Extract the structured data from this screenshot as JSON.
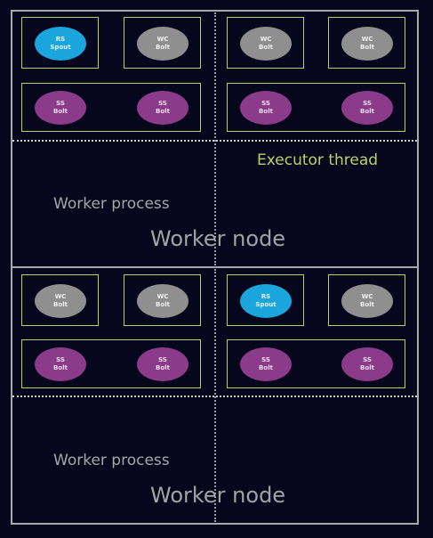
{
  "nodes": [
    {
      "worker_process_label": "Worker process",
      "worker_node_label": "Worker node",
      "executor_thread_label": "Executor thread",
      "tasks": [
        {
          "line1": "RS",
          "line2": "Spout",
          "kind": "spout"
        },
        {
          "line1": "WC",
          "line2": "Bolt",
          "kind": "wc"
        },
        {
          "line1": "WC",
          "line2": "Bolt",
          "kind": "wc"
        },
        {
          "line1": "WC",
          "line2": "Bolt",
          "kind": "wc"
        },
        {
          "line1": "SS",
          "line2": "Bolt",
          "kind": "ss"
        },
        {
          "line1": "SS",
          "line2": "Bolt",
          "kind": "ss"
        },
        {
          "line1": "SS",
          "line2": "Bolt",
          "kind": "ss"
        },
        {
          "line1": "SS",
          "line2": "Bolt",
          "kind": "ss"
        }
      ]
    },
    {
      "worker_process_label": "Worker process",
      "worker_node_label": "Worker node",
      "tasks": [
        {
          "line1": "WC",
          "line2": "Bolt",
          "kind": "wc"
        },
        {
          "line1": "WC",
          "line2": "Bolt",
          "kind": "wc"
        },
        {
          "line1": "RS",
          "line2": "Spout",
          "kind": "spout"
        },
        {
          "line1": "WC",
          "line2": "Bolt",
          "kind": "wc"
        },
        {
          "line1": "SS",
          "line2": "Bolt",
          "kind": "ss"
        },
        {
          "line1": "SS",
          "line2": "Bolt",
          "kind": "ss"
        },
        {
          "line1": "SS",
          "line2": "Bolt",
          "kind": "ss"
        },
        {
          "line1": "SS",
          "line2": "Bolt",
          "kind": "ss"
        }
      ]
    }
  ],
  "colors": {
    "background": "#06061c",
    "node_border": "#a9a9a9",
    "executor_border": "#b7d25a",
    "spout": "#1aa6dc",
    "wc_bolt": "#8f8f8f",
    "ss_bolt": "#8c3a8a"
  }
}
